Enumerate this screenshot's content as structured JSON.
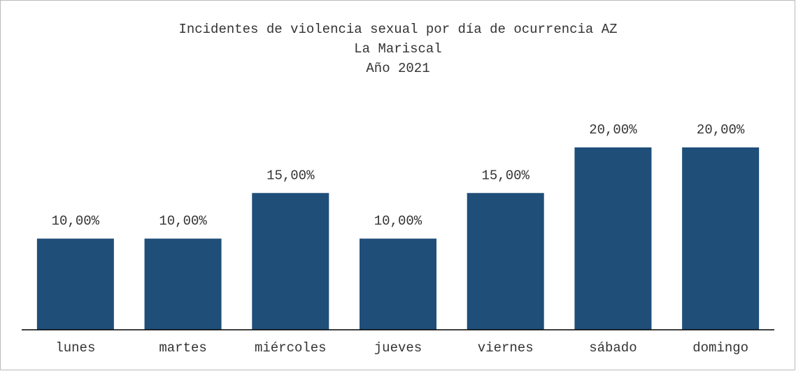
{
  "chart_data": {
    "type": "bar",
    "title": [
      "Incidentes de violencia sexual por día de ocurrencia AZ",
      "La Mariscal",
      "Año 2021"
    ],
    "categories": [
      "lunes",
      "martes",
      "miércoles",
      "jueves",
      "viernes",
      "sábado",
      "domingo"
    ],
    "values": [
      10,
      10,
      15,
      10,
      15,
      20,
      20
    ],
    "value_labels": [
      "10,00%",
      "10,00%",
      "15,00%",
      "10,00%",
      "15,00%",
      "20,00%",
      "20,00%"
    ],
    "color": "#1f4e79"
  }
}
